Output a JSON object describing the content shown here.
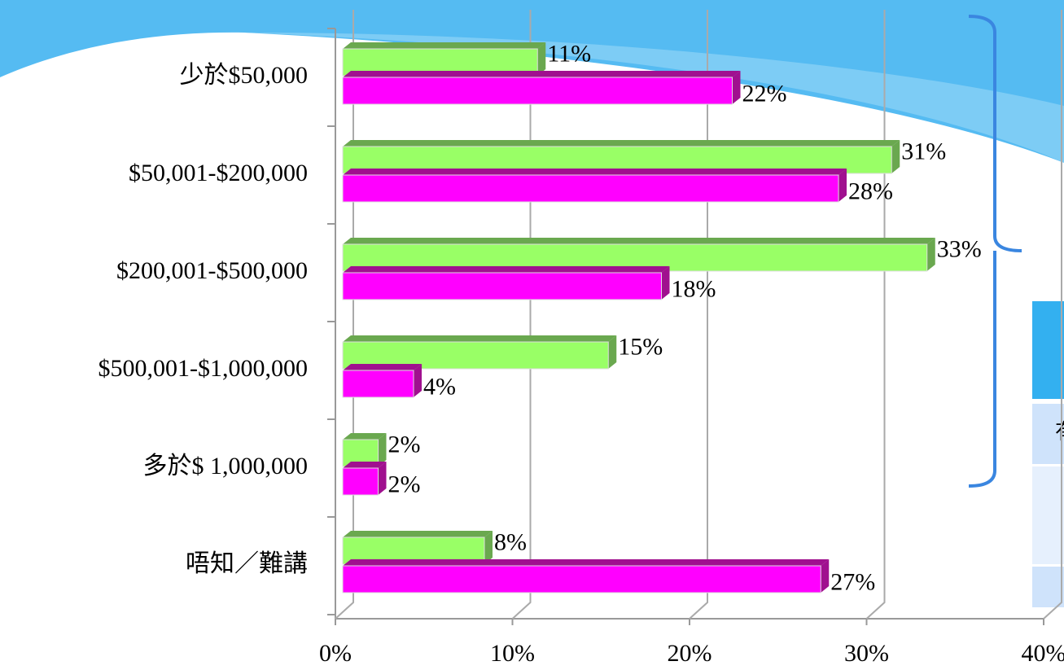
{
  "chart_data": {
    "type": "bar",
    "orientation": "horizontal",
    "categories": [
      "少於$50,000",
      "$50,001-$200,000",
      "$200,001-$500,000",
      "$500,001-$1,000,000",
      "多於$ 1,000,000",
      "唔知／難講"
    ],
    "series": [
      {
        "color": "#99ff66",
        "values": [
          11,
          31,
          33,
          15,
          2,
          8
        ],
        "value_labels": [
          "11%",
          "31%",
          "33%",
          "15%",
          "2%",
          "8%"
        ]
      },
      {
        "color": "#ff00ff",
        "values": [
          22,
          28,
          18,
          4,
          2,
          27
        ],
        "value_labels": [
          "22%",
          "28%",
          "18%",
          "4%",
          "2%",
          "27%"
        ]
      }
    ],
    "xlim": [
      0,
      40
    ],
    "xticks": [
      {
        "value": 0,
        "label": "0%"
      },
      {
        "value": 10,
        "label": "10%"
      },
      {
        "value": 20,
        "label": "20%"
      },
      {
        "value": 30,
        "label": "30%"
      },
      {
        "value": 40,
        "label": "40%"
      }
    ],
    "grid": true
  },
  "side_table_text": "有"
}
